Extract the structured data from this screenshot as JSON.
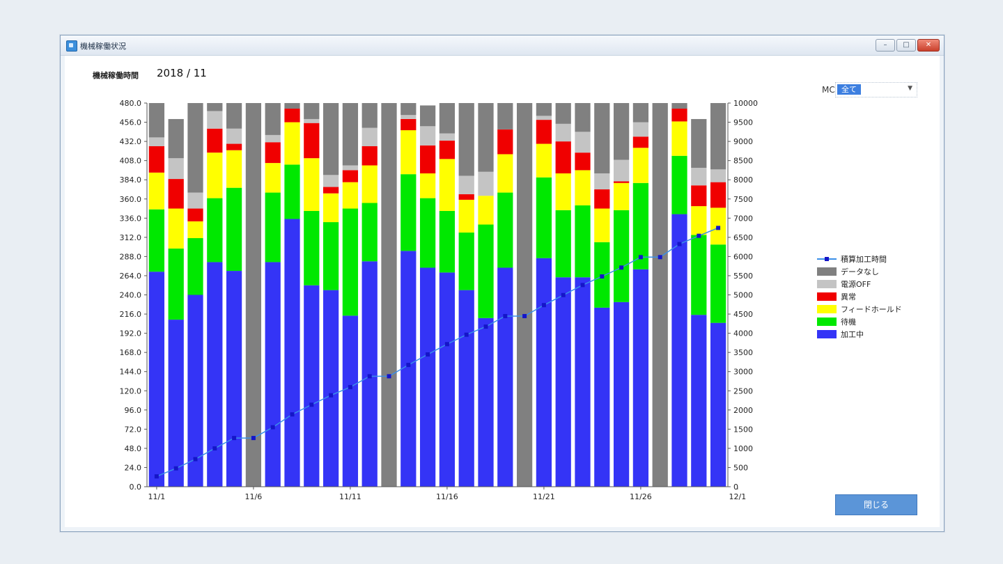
{
  "window": {
    "title": "機械稼働状況"
  },
  "header": {
    "period_label": "機械稼働時間",
    "period_value": "2018 / 11"
  },
  "filter": {
    "mc_label": "MC",
    "mc_value": "全て"
  },
  "close_button": "閉じる",
  "colors": {
    "processing": "#3434f6",
    "standby": "#00e800",
    "feedhold": "#ffff00",
    "alarm": "#f00000",
    "power_off": "#c4c4c4",
    "no_data": "#808080",
    "line": "#3a8fe8",
    "marker": "#1515c8"
  },
  "chart_data": {
    "type": "bar",
    "stacked": true,
    "categories": [
      "11/1",
      "11/2",
      "11/3",
      "11/4",
      "11/5",
      "11/6",
      "11/7",
      "11/8",
      "11/9",
      "11/10",
      "11/11",
      "11/12",
      "11/13",
      "11/14",
      "11/15",
      "11/16",
      "11/17",
      "11/18",
      "11/19",
      "11/20",
      "11/21",
      "11/22",
      "11/23",
      "11/24",
      "11/25",
      "11/26",
      "11/27",
      "11/28",
      "11/29",
      "11/30"
    ],
    "x_tick_labels": [
      "11/1",
      "11/6",
      "11/11",
      "11/16",
      "11/21",
      "11/26",
      "12/1"
    ],
    "left_axis": {
      "ylim": [
        0,
        480
      ],
      "ticks": [
        "0.0",
        "24.0",
        "48.0",
        "72.0",
        "96.0",
        "120.0",
        "144.0",
        "168.0",
        "192.0",
        "216.0",
        "240.0",
        "264.0",
        "288.0",
        "312.0",
        "336.0",
        "360.0",
        "384.0",
        "408.0",
        "432.0",
        "456.0",
        "480.0"
      ]
    },
    "right_axis": {
      "ylim": [
        0,
        10000
      ],
      "ticks": [
        "0",
        "500",
        "1000",
        "1500",
        "2000",
        "2500",
        "3000",
        "3500",
        "4000",
        "4500",
        "5000",
        "5500",
        "6000",
        "6500",
        "7000",
        "7500",
        "8000",
        "8500",
        "9000",
        "9500",
        "10000"
      ]
    },
    "series": [
      {
        "name": "加工中",
        "values": [
          269,
          209,
          240,
          281,
          270,
          0,
          281,
          335,
          252,
          246,
          214,
          282,
          0,
          295,
          274,
          268,
          246,
          211,
          274,
          0,
          286,
          262,
          262,
          224,
          231,
          272,
          0,
          341,
          215,
          205
        ]
      },
      {
        "name": "待機",
        "values": [
          78,
          89,
          71,
          80,
          104,
          0,
          87,
          68,
          93,
          85,
          134,
          73,
          0,
          96,
          87,
          77,
          72,
          117,
          94,
          0,
          101,
          84,
          90,
          82,
          115,
          108,
          0,
          73,
          100,
          98
        ]
      },
      {
        "name": "フィードホールド",
        "values": [
          46,
          50,
          21,
          57,
          47,
          0,
          37,
          53,
          66,
          36,
          33,
          47,
          0,
          55,
          31,
          65,
          41,
          36,
          48,
          0,
          42,
          46,
          44,
          42,
          34,
          44,
          0,
          43,
          36,
          46
        ]
      },
      {
        "name": "異常",
        "values": [
          33,
          37,
          16,
          30,
          8,
          0,
          26,
          17,
          44,
          8,
          15,
          24,
          0,
          14,
          35,
          23,
          7,
          0,
          31,
          0,
          30,
          40,
          22,
          24,
          2,
          14,
          0,
          16,
          26,
          32
        ]
      },
      {
        "name": "電源OFF",
        "values": [
          11,
          26,
          20,
          22,
          19,
          0,
          9,
          0,
          5,
          15,
          6,
          23,
          0,
          5,
          24,
          9,
          23,
          30,
          0,
          0,
          5,
          22,
          26,
          20,
          27,
          18,
          0,
          0,
          22,
          16
        ]
      },
      {
        "name": "データなし",
        "values": [
          43,
          49,
          112,
          10,
          32,
          480,
          40,
          7,
          20,
          90,
          78,
          31,
          480,
          15,
          26,
          38,
          91,
          86,
          33,
          480,
          16,
          26,
          36,
          88,
          71,
          24,
          480,
          7,
          61,
          83
        ]
      }
    ],
    "line_series": {
      "name": "積算加工時間",
      "axis": "right",
      "values": [
        269,
        478,
        718,
        999,
        1269,
        1269,
        1550,
        1885,
        2137,
        2383,
        2597,
        2879,
        2879,
        3174,
        3448,
        3716,
        3962,
        4173,
        4447,
        4447,
        4733,
        4995,
        5257,
        5481,
        5712,
        5984,
        5984,
        6325,
        6540,
        6745
      ]
    },
    "legend": [
      {
        "label": "積算加工時間",
        "kind": "line"
      },
      {
        "label": "データなし",
        "kind": "box",
        "color": "#808080"
      },
      {
        "label": "電源OFF",
        "kind": "box",
        "color": "#c4c4c4"
      },
      {
        "label": "異常",
        "kind": "box",
        "color": "#f00000"
      },
      {
        "label": "フィードホールド",
        "kind": "box",
        "color": "#ffff00"
      },
      {
        "label": "待機",
        "kind": "box",
        "color": "#00e800"
      },
      {
        "label": "加工中",
        "kind": "box",
        "color": "#3434f6"
      }
    ],
    "legend_position": "right",
    "grid": false
  }
}
